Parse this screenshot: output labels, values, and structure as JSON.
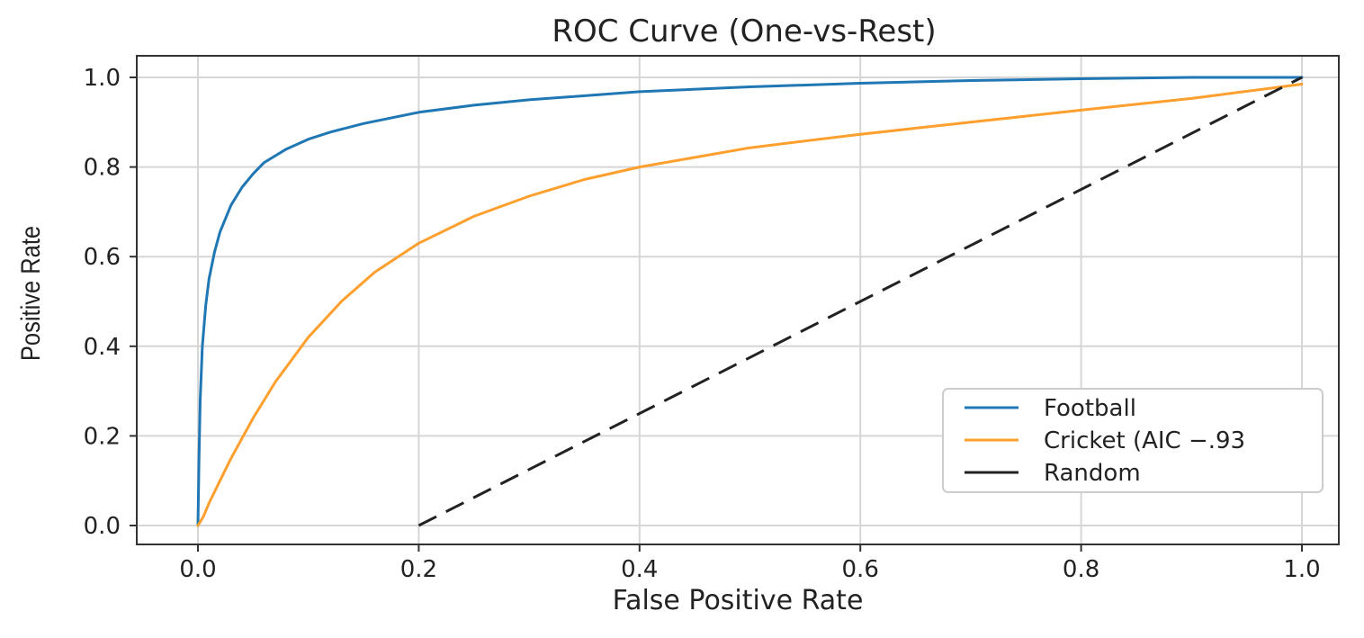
{
  "chart_data": {
    "type": "line",
    "title": "ROC Curve (One-vs-Rest)",
    "xlabel": "False Positive Rate",
    "ylabel": "Positive Rate",
    "xlim": [
      -0.05,
      1.03
    ],
    "ylim": [
      -0.04,
      1.05
    ],
    "xticks": [
      0.0,
      0.2,
      0.4,
      0.6,
      0.8,
      1.0
    ],
    "yticks": [
      0.0,
      0.2,
      0.4,
      0.6,
      0.8,
      1.0
    ],
    "xtick_labels": [
      "0.0",
      "0.2",
      "0.4",
      "0.6",
      "0.8",
      "1.0"
    ],
    "ytick_labels": [
      "0.0",
      "0.2",
      "0.4",
      "0.6",
      "0.8",
      "1.0"
    ],
    "grid": true,
    "legend_position": "lower-right",
    "series": [
      {
        "name": "Football",
        "color": "#1f77b4",
        "dash": "solid",
        "x": [
          0.0,
          0.001,
          0.002,
          0.004,
          0.007,
          0.01,
          0.015,
          0.02,
          0.03,
          0.04,
          0.05,
          0.06,
          0.08,
          0.1,
          0.12,
          0.15,
          0.2,
          0.25,
          0.3,
          0.4,
          0.5,
          0.6,
          0.7,
          0.8,
          0.9,
          1.0
        ],
        "y": [
          0.0,
          0.15,
          0.28,
          0.4,
          0.49,
          0.55,
          0.61,
          0.655,
          0.715,
          0.755,
          0.785,
          0.81,
          0.84,
          0.862,
          0.878,
          0.897,
          0.922,
          0.938,
          0.95,
          0.968,
          0.979,
          0.987,
          0.993,
          0.997,
          1.0,
          1.0
        ]
      },
      {
        "name": "Cricket (AIC −.93",
        "color": "#ff9f2e",
        "dash": "solid",
        "x": [
          0.0,
          0.005,
          0.01,
          0.02,
          0.03,
          0.05,
          0.07,
          0.1,
          0.13,
          0.16,
          0.2,
          0.25,
          0.3,
          0.35,
          0.4,
          0.5,
          0.6,
          0.7,
          0.8,
          0.9,
          1.0
        ],
        "y": [
          0.0,
          0.02,
          0.05,
          0.1,
          0.15,
          0.24,
          0.32,
          0.42,
          0.5,
          0.565,
          0.63,
          0.69,
          0.735,
          0.772,
          0.8,
          0.843,
          0.873,
          0.9,
          0.927,
          0.953,
          0.985
        ]
      },
      {
        "name": "Random",
        "color": "#222222",
        "dash": "dashed",
        "x": [
          0.2,
          1.0
        ],
        "y": [
          0.0,
          1.0
        ]
      }
    ]
  }
}
